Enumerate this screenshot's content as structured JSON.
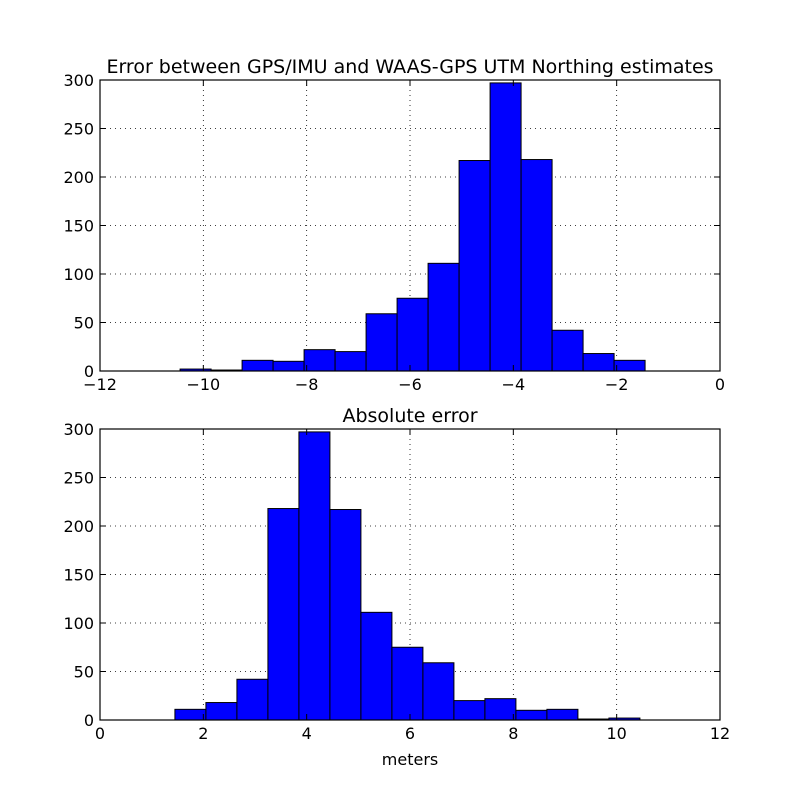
{
  "chart_data": [
    {
      "type": "bar",
      "title": "Error between GPS/IMU and WAAS-GPS UTM Northing estimates",
      "xlabel": "",
      "ylabel": "",
      "xlim": [
        -12,
        0
      ],
      "ylim": [
        0,
        300
      ],
      "xticks": [
        -12,
        -10,
        -8,
        -6,
        -4,
        -2,
        0
      ],
      "xtick_labels": [
        "−12",
        "−10",
        "−8",
        "−6",
        "−4",
        "−2",
        "0"
      ],
      "yticks": [
        0,
        50,
        100,
        150,
        200,
        250,
        300
      ],
      "ytick_labels": [
        "0",
        "50",
        "100",
        "150",
        "200",
        "250",
        "300"
      ],
      "grid": true,
      "bar_color": "#0000ff",
      "bins": [
        {
          "x0": -10.45,
          "x1": -9.85,
          "value": 2
        },
        {
          "x0": -9.85,
          "x1": -9.25,
          "value": 1
        },
        {
          "x0": -9.25,
          "x1": -8.65,
          "value": 11
        },
        {
          "x0": -8.65,
          "x1": -8.05,
          "value": 10
        },
        {
          "x0": -8.05,
          "x1": -7.45,
          "value": 22
        },
        {
          "x0": -7.45,
          "x1": -6.85,
          "value": 20
        },
        {
          "x0": -6.85,
          "x1": -6.25,
          "value": 59
        },
        {
          "x0": -6.25,
          "x1": -5.65,
          "value": 75
        },
        {
          "x0": -5.65,
          "x1": -5.05,
          "value": 111
        },
        {
          "x0": -5.05,
          "x1": -4.45,
          "value": 217
        },
        {
          "x0": -4.45,
          "x1": -3.85,
          "value": 297
        },
        {
          "x0": -3.85,
          "x1": -3.25,
          "value": 218
        },
        {
          "x0": -3.25,
          "x1": -2.65,
          "value": 42
        },
        {
          "x0": -2.65,
          "x1": -2.05,
          "value": 18
        },
        {
          "x0": -2.05,
          "x1": -1.45,
          "value": 11
        }
      ]
    },
    {
      "type": "bar",
      "title": "Absolute error",
      "xlabel": "meters",
      "ylabel": "",
      "xlim": [
        0,
        12
      ],
      "ylim": [
        0,
        300
      ],
      "xticks": [
        0,
        2,
        4,
        6,
        8,
        10,
        12
      ],
      "xtick_labels": [
        "0",
        "2",
        "4",
        "6",
        "8",
        "10",
        "12"
      ],
      "yticks": [
        0,
        50,
        100,
        150,
        200,
        250,
        300
      ],
      "ytick_labels": [
        "0",
        "50",
        "100",
        "150",
        "200",
        "250",
        "300"
      ],
      "grid": true,
      "bar_color": "#0000ff",
      "bins": [
        {
          "x0": 1.45,
          "x1": 2.05,
          "value": 11
        },
        {
          "x0": 2.05,
          "x1": 2.65,
          "value": 18
        },
        {
          "x0": 2.65,
          "x1": 3.25,
          "value": 42
        },
        {
          "x0": 3.25,
          "x1": 3.85,
          "value": 218
        },
        {
          "x0": 3.85,
          "x1": 4.45,
          "value": 297
        },
        {
          "x0": 4.45,
          "x1": 5.05,
          "value": 217
        },
        {
          "x0": 5.05,
          "x1": 5.65,
          "value": 111
        },
        {
          "x0": 5.65,
          "x1": 6.25,
          "value": 75
        },
        {
          "x0": 6.25,
          "x1": 6.85,
          "value": 59
        },
        {
          "x0": 6.85,
          "x1": 7.45,
          "value": 20
        },
        {
          "x0": 7.45,
          "x1": 8.05,
          "value": 22
        },
        {
          "x0": 8.05,
          "x1": 8.65,
          "value": 10
        },
        {
          "x0": 8.65,
          "x1": 9.25,
          "value": 11
        },
        {
          "x0": 9.25,
          "x1": 9.85,
          "value": 1
        },
        {
          "x0": 9.85,
          "x1": 10.45,
          "value": 2
        }
      ]
    }
  ]
}
